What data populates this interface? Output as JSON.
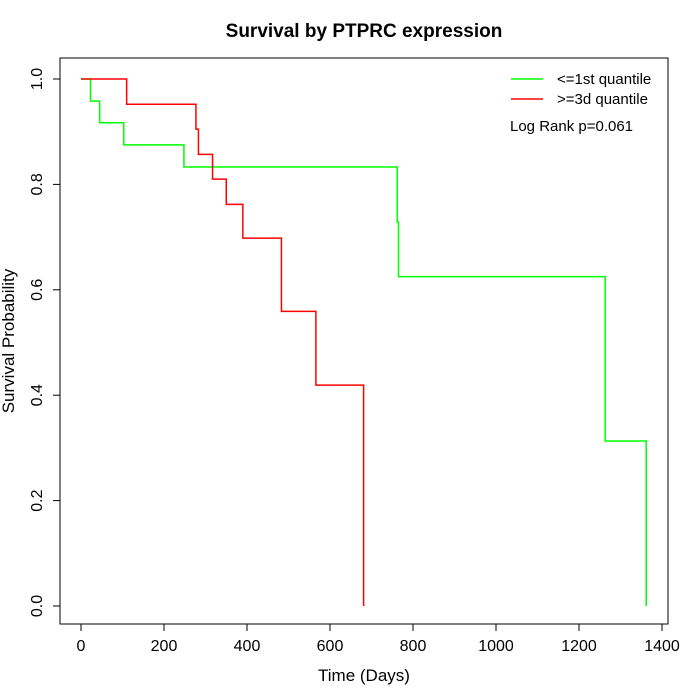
{
  "chart_data": {
    "type": "line",
    "subtype": "kaplan-meier",
    "title": "Survival by PTPRC expression",
    "xlabel": "Time (Days)",
    "ylabel": "Survival Probability",
    "xlim": [
      0,
      1400
    ],
    "ylim": [
      0,
      1
    ],
    "xticks": [
      0,
      200,
      400,
      600,
      800,
      1000,
      1200,
      1400
    ],
    "yticks": [
      0.0,
      0.2,
      0.4,
      0.6,
      0.8,
      1.0
    ],
    "xtick_labels": [
      "0",
      "200",
      "400",
      "600",
      "800",
      "1000",
      "1200",
      "1400"
    ],
    "ytick_labels": [
      "0.0",
      "0.2",
      "0.4",
      "0.6",
      "0.8",
      "1.0"
    ],
    "grid": false,
    "legend_position": "top-right",
    "annotation": "Log Rank p=0.061",
    "series": [
      {
        "name": "<=1st quantile",
        "color": "#00ff00",
        "steps": [
          {
            "x": 0,
            "y": 1.0
          },
          {
            "x": 23,
            "y": 0.958
          },
          {
            "x": 45,
            "y": 0.917
          },
          {
            "x": 103,
            "y": 0.875
          },
          {
            "x": 248,
            "y": 0.833
          },
          {
            "x": 762,
            "y": 0.729
          },
          {
            "x": 765,
            "y": 0.625
          },
          {
            "x": 1263,
            "y": 0.313
          },
          {
            "x": 1362,
            "y": 0.0
          }
        ]
      },
      {
        "name": ">=3d quantile",
        "color": "#ff0000",
        "steps": [
          {
            "x": 0,
            "y": 1.0
          },
          {
            "x": 110,
            "y": 0.952
          },
          {
            "x": 277,
            "y": 0.905
          },
          {
            "x": 283,
            "y": 0.857
          },
          {
            "x": 317,
            "y": 0.81
          },
          {
            "x": 350,
            "y": 0.762
          },
          {
            "x": 390,
            "y": 0.698
          },
          {
            "x": 483,
            "y": 0.559
          },
          {
            "x": 566,
            "y": 0.419
          },
          {
            "x": 681,
            "y": 0.0
          }
        ]
      }
    ]
  }
}
